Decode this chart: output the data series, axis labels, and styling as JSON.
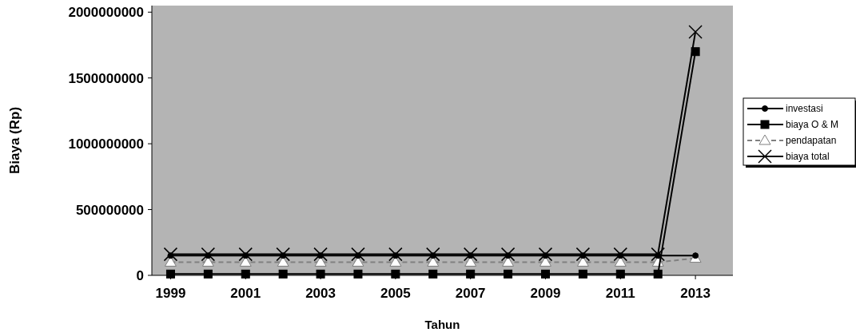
{
  "chart_data": {
    "type": "line",
    "xlabel": "Tahun",
    "ylabel": "Biaya (Rp)",
    "x": [
      1999,
      2000,
      2001,
      2002,
      2003,
      2004,
      2005,
      2006,
      2007,
      2008,
      2009,
      2010,
      2011,
      2012,
      2013
    ],
    "xlim": [
      1998.5,
      2014
    ],
    "xticks": [
      1999,
      2001,
      2003,
      2005,
      2007,
      2009,
      2011,
      2013
    ],
    "ylim": [
      0,
      2050000000
    ],
    "yticks": [
      0,
      500000000,
      1000000000,
      1500000000,
      2000000000
    ],
    "grid": false,
    "legend": "right",
    "series": [
      {
        "name": "investasi",
        "color": "#000000",
        "marker": "circle",
        "line_style": "solid",
        "values": [
          150000000,
          150000000,
          150000000,
          150000000,
          150000000,
          150000000,
          150000000,
          150000000,
          150000000,
          150000000,
          150000000,
          150000000,
          150000000,
          150000000,
          150000000
        ]
      },
      {
        "name": "biaya O & M",
        "color": "#000000",
        "marker": "square",
        "line_style": "solid",
        "values": [
          10000000,
          10000000,
          10000000,
          10000000,
          10000000,
          10000000,
          10000000,
          10000000,
          10000000,
          10000000,
          10000000,
          10000000,
          10000000,
          10000000,
          1700000000
        ]
      },
      {
        "name": "pendapatan",
        "color": "#808080",
        "marker": "triangle",
        "line_style": "dashed",
        "values": [
          100000000,
          100000000,
          100000000,
          100000000,
          100000000,
          100000000,
          100000000,
          100000000,
          100000000,
          100000000,
          100000000,
          100000000,
          100000000,
          100000000,
          130000000
        ]
      },
      {
        "name": "biaya total",
        "color": "#000000",
        "marker": "cross",
        "line_style": "solid",
        "values": [
          160000000,
          160000000,
          160000000,
          160000000,
          160000000,
          160000000,
          160000000,
          160000000,
          160000000,
          160000000,
          160000000,
          160000000,
          160000000,
          160000000,
          1850000000
        ]
      }
    ]
  }
}
